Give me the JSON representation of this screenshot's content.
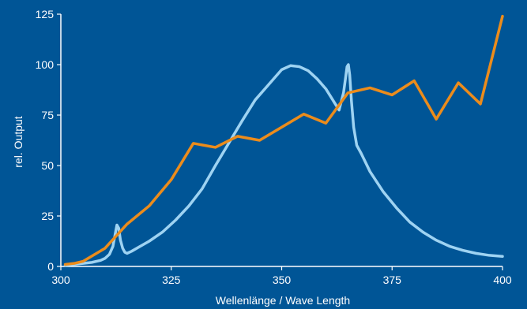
{
  "chart_data": {
    "type": "line",
    "title": "",
    "xlabel": "Wellenlänge / Wave Length",
    "ylabel": "rel. Output",
    "xlim": [
      300,
      400
    ],
    "ylim": [
      0,
      125
    ],
    "xticks": [
      300,
      325,
      350,
      375,
      400
    ],
    "yticks": [
      0,
      25,
      50,
      75,
      100,
      125
    ],
    "grid": false,
    "legend": "none",
    "background": "#005596",
    "series": [
      {
        "color": "#9ed3f2",
        "x": [
          301,
          303,
          305,
          307,
          309,
          310,
          311,
          311.8,
          312.3,
          312.7,
          313.1,
          313.5,
          314,
          314.5,
          315,
          316,
          318,
          320,
          323,
          326,
          329,
          332,
          335,
          338,
          341,
          344,
          347,
          350,
          352,
          354,
          356,
          358,
          360,
          362,
          363,
          364,
          364.5,
          364.8,
          365.1,
          365.4,
          365.8,
          366.3,
          367,
          368,
          370,
          373,
          376,
          379,
          382,
          385,
          388,
          391,
          394,
          397,
          400
        ],
        "y": [
          0.5,
          1,
          1.5,
          2,
          3,
          4,
          6,
          10,
          16,
          20.5,
          19,
          13,
          9,
          7,
          6.5,
          7.5,
          10,
          12.5,
          17,
          23,
          30,
          38.5,
          50,
          61,
          72,
          82.5,
          90,
          97.5,
          99.5,
          99,
          97,
          93,
          88,
          81,
          77.5,
          86,
          94,
          99,
          100,
          95,
          82,
          69,
          60,
          56,
          47,
          37,
          29,
          22,
          17,
          13,
          10,
          8,
          6.5,
          5.5,
          5
        ]
      },
      {
        "color": "#ec8c1b",
        "x": [
          301,
          303,
          305,
          310,
          315,
          320,
          325,
          330,
          335,
          340,
          345,
          350,
          355,
          360,
          365,
          370,
          375,
          380,
          385,
          390,
          395,
          400
        ],
        "y": [
          1,
          1.5,
          2.5,
          9,
          21,
          30,
          43,
          61,
          59,
          64.5,
          62.5,
          69,
          75.5,
          71,
          86,
          88.5,
          85,
          92,
          73,
          91,
          80.5,
          124
        ]
      }
    ]
  }
}
